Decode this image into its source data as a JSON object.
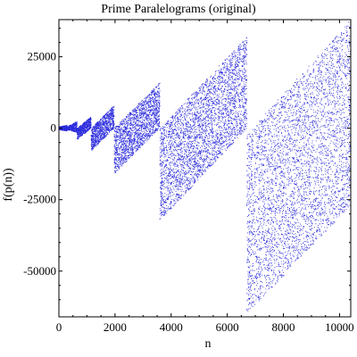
{
  "chart_data": {
    "type": "scatter",
    "title": "Prime Paralelograms (original)",
    "xlabel": "n",
    "ylabel": "f(p(n))",
    "xlim": [
      0,
      10400
    ],
    "ylim": [
      -66000,
      38000
    ],
    "x_ticks": [
      "0",
      "2000",
      "4000",
      "6000",
      "8000",
      "10000"
    ],
    "y_ticks": [
      "25000",
      "0",
      "-25000",
      "-50000"
    ],
    "x_tick_values": [
      0,
      2000,
      4000,
      6000,
      8000,
      10000
    ],
    "y_tick_values": [
      25000,
      0,
      -25000,
      -50000
    ],
    "grid": false,
    "point_color": "#2b2bdc",
    "segments": [
      {
        "x_start": 0,
        "x_end": 300,
        "y_top_start": 500,
        "y_top_end": 1000,
        "y_bottom_start": -500,
        "y_bottom_end": -1000
      },
      {
        "x_start": 300,
        "x_end": 650,
        "y_top_start": 500,
        "y_top_end": 2500,
        "y_bottom_start": -500,
        "y_bottom_end": -1500
      },
      {
        "x_start": 650,
        "x_end": 1150,
        "y_top_start": 0,
        "y_top_end": 4000,
        "y_bottom_start": -4000,
        "y_bottom_end": 0
      },
      {
        "x_start": 1150,
        "x_end": 1970,
        "y_top_start": 0,
        "y_top_end": 8000,
        "y_bottom_start": -8000,
        "y_bottom_end": 0
      },
      {
        "x_start": 1970,
        "x_end": 3600,
        "y_top_start": 0,
        "y_top_end": 16000,
        "y_bottom_start": -16000,
        "y_bottom_end": 0
      },
      {
        "x_start": 3600,
        "x_end": 6700,
        "y_top_start": 0,
        "y_top_end": 32000,
        "y_bottom_start": -32500,
        "y_bottom_end": 0
      },
      {
        "x_start": 6700,
        "x_end": 10400,
        "y_top_start": -2000,
        "y_top_end": 38000,
        "y_bottom_start": -65000,
        "y_bottom_end": -27000
      }
    ]
  }
}
